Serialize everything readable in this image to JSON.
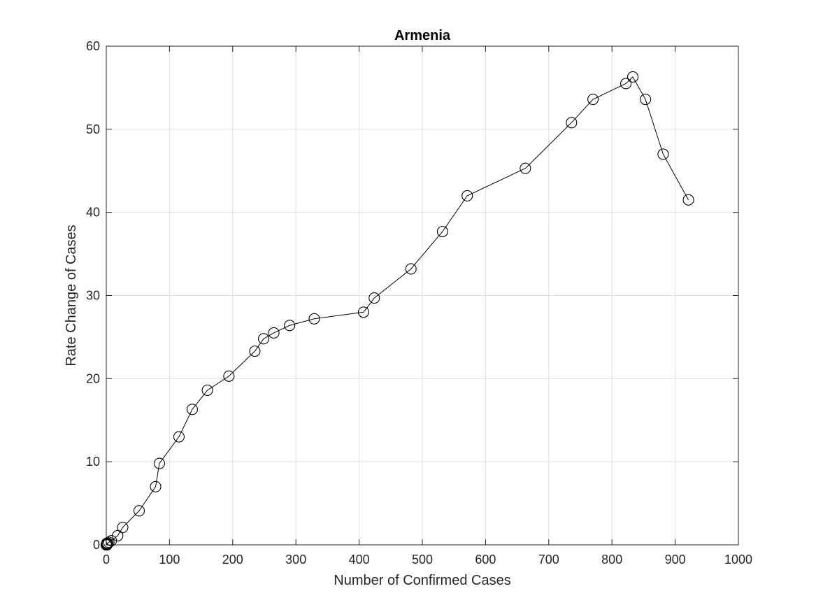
{
  "chart_data": {
    "type": "line",
    "title": "Armenia",
    "xlabel": "Number of Confirmed Cases",
    "ylabel": "Rate Change of Cases",
    "xlim": [
      0,
      1000
    ],
    "ylim": [
      0,
      60
    ],
    "xticks": [
      0,
      100,
      200,
      300,
      400,
      500,
      600,
      700,
      800,
      900,
      1000
    ],
    "yticks": [
      0,
      10,
      20,
      30,
      40,
      50,
      60
    ],
    "grid": true,
    "marker": "circle",
    "series": [
      {
        "color": "#000000",
        "x": [
          0,
          1,
          1,
          1,
          1,
          1,
          1,
          2,
          4,
          8,
          18,
          26,
          52,
          78,
          84,
          115,
          136,
          160,
          194,
          235,
          249,
          265,
          290,
          329,
          407,
          424,
          482,
          532,
          571,
          663,
          736,
          770,
          822,
          833,
          853,
          881,
          921
        ],
        "y": [
          0,
          0,
          0,
          0.1,
          0.1,
          0.1,
          0.2,
          0.2,
          0.3,
          0.5,
          1.1,
          2.1,
          4.1,
          7.0,
          9.8,
          13.0,
          16.3,
          18.6,
          20.3,
          23.3,
          24.8,
          25.5,
          26.4,
          27.2,
          28.0,
          29.7,
          33.2,
          37.7,
          42.0,
          45.3,
          50.8,
          53.6,
          55.5,
          56.3,
          53.6,
          47.0,
          41.5
        ]
      }
    ]
  }
}
